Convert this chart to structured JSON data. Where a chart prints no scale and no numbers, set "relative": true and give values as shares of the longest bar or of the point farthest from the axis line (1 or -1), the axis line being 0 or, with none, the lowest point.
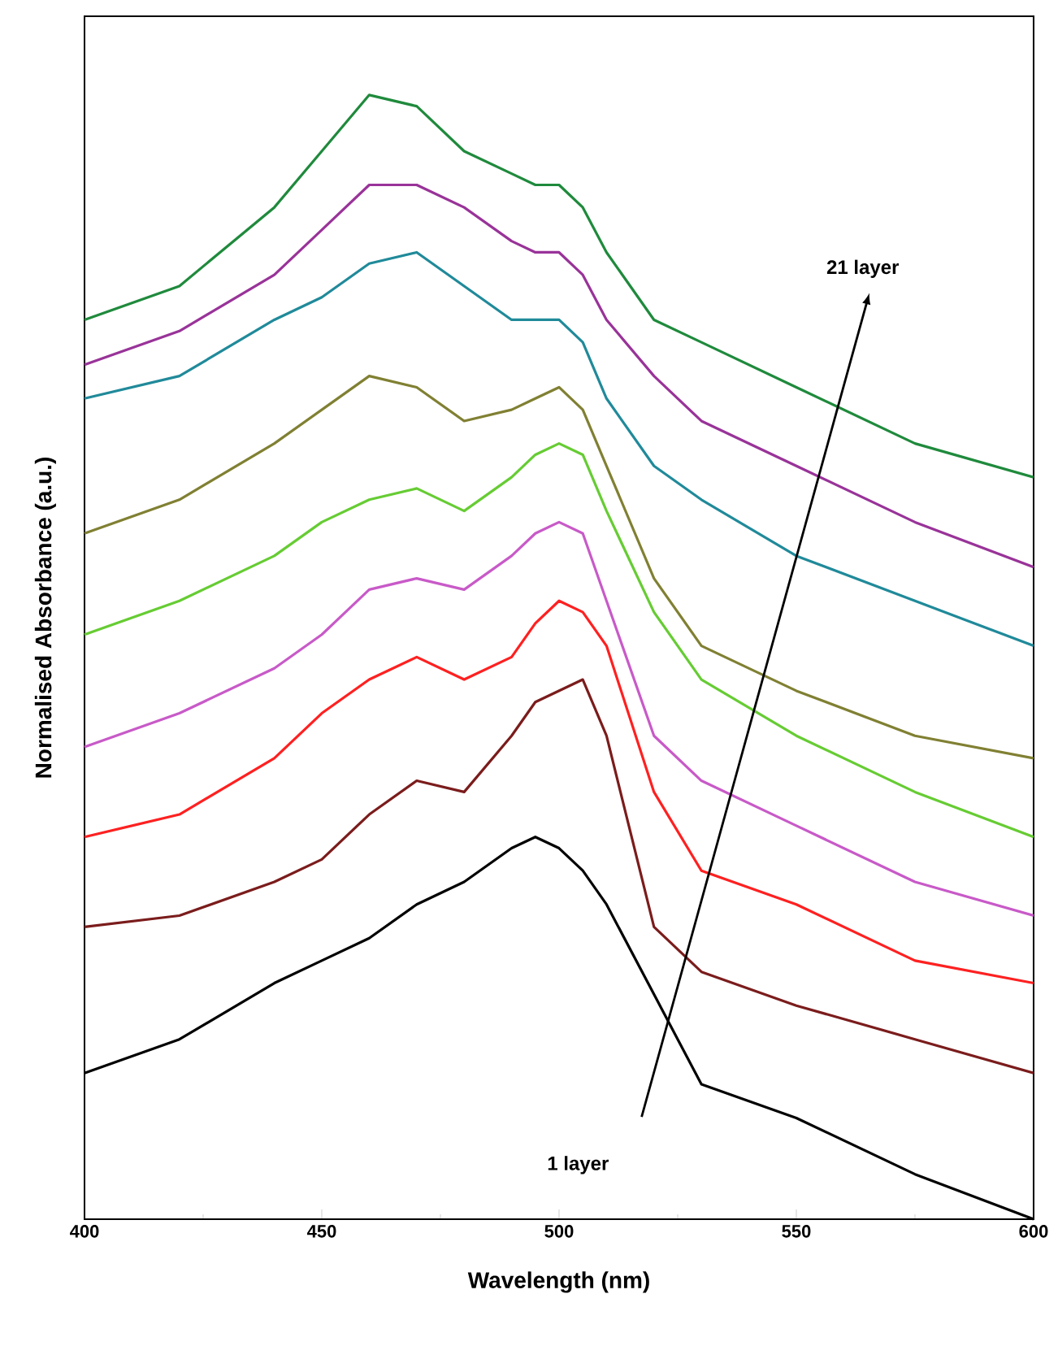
{
  "chart_data": {
    "type": "line",
    "xlabel": "Wavelength (nm)",
    "ylabel": "Normalised Absorbance (a.u.)",
    "relative": true,
    "tick_labels": "x",
    "xlim": [
      400,
      600
    ],
    "xticks": [
      400,
      450,
      500,
      550,
      600
    ],
    "x": [
      400,
      420,
      440,
      450,
      460,
      470,
      480,
      490,
      495,
      500,
      505,
      510,
      520,
      530,
      550,
      575,
      600
    ],
    "series": [
      {
        "color": "#000000",
        "values": [
          0.13,
          0.16,
          0.21,
          0.23,
          0.25,
          0.28,
          0.3,
          0.33,
          0.34,
          0.33,
          0.31,
          0.28,
          0.2,
          0.12,
          0.09,
          0.04,
          0.0
        ]
      },
      {
        "color": "#7b1c1c",
        "values": [
          0.26,
          0.27,
          0.3,
          0.32,
          0.36,
          0.39,
          0.38,
          0.43,
          0.46,
          0.47,
          0.48,
          0.43,
          0.26,
          0.22,
          0.19,
          0.16,
          0.13
        ]
      },
      {
        "color": "#ff2020",
        "values": [
          0.34,
          0.36,
          0.41,
          0.45,
          0.48,
          0.5,
          0.48,
          0.5,
          0.53,
          0.55,
          0.54,
          0.51,
          0.38,
          0.31,
          0.28,
          0.23,
          0.21
        ]
      },
      {
        "color": "#c85ac8",
        "values": [
          0.42,
          0.45,
          0.49,
          0.52,
          0.56,
          0.57,
          0.56,
          0.59,
          0.61,
          0.62,
          0.61,
          0.55,
          0.43,
          0.39,
          0.35,
          0.3,
          0.27
        ]
      },
      {
        "color": "#66cc33",
        "values": [
          0.52,
          0.55,
          0.59,
          0.62,
          0.64,
          0.65,
          0.63,
          0.66,
          0.68,
          0.69,
          0.68,
          0.63,
          0.54,
          0.48,
          0.43,
          0.38,
          0.34
        ]
      },
      {
        "color": "#808033",
        "values": [
          0.61,
          0.64,
          0.69,
          0.72,
          0.75,
          0.74,
          0.71,
          0.72,
          0.73,
          0.74,
          0.72,
          0.67,
          0.57,
          0.51,
          0.47,
          0.43,
          0.41
        ]
      },
      {
        "color": "#208a9a",
        "values": [
          0.73,
          0.75,
          0.8,
          0.82,
          0.85,
          0.86,
          0.83,
          0.8,
          0.8,
          0.8,
          0.78,
          0.73,
          0.67,
          0.64,
          0.59,
          0.55,
          0.51
        ]
      },
      {
        "color": "#993399",
        "values": [
          0.76,
          0.79,
          0.84,
          0.88,
          0.92,
          0.92,
          0.9,
          0.87,
          0.86,
          0.86,
          0.84,
          0.8,
          0.75,
          0.71,
          0.67,
          0.62,
          0.58
        ]
      },
      {
        "color": "#1f8a3c",
        "values": [
          0.8,
          0.83,
          0.9,
          0.95,
          1.0,
          0.99,
          0.95,
          0.93,
          0.92,
          0.92,
          0.9,
          0.86,
          0.8,
          0.78,
          0.74,
          0.69,
          0.66
        ]
      }
    ],
    "annotations": [
      "1 layer",
      "21 layer"
    ]
  }
}
